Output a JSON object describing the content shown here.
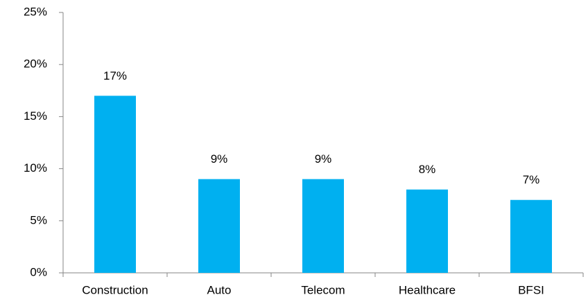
{
  "chart_data": {
    "type": "bar",
    "categories": [
      "Construction",
      "Auto",
      "Telecom",
      "Healthcare",
      "BFSI"
    ],
    "values": [
      17,
      9,
      9,
      8,
      7
    ],
    "value_labels": [
      "17%",
      "9%",
      "9%",
      "8%",
      "7%"
    ],
    "color": "#00b0f0",
    "ylim": [
      0,
      25
    ],
    "yticks": [
      {
        "value": 0,
        "label": "0%"
      },
      {
        "value": 5,
        "label": "5%"
      },
      {
        "value": 10,
        "label": "10%"
      },
      {
        "value": 15,
        "label": "15%"
      },
      {
        "value": 20,
        "label": "20%"
      },
      {
        "value": 25,
        "label": "25%"
      }
    ],
    "grid": false
  }
}
